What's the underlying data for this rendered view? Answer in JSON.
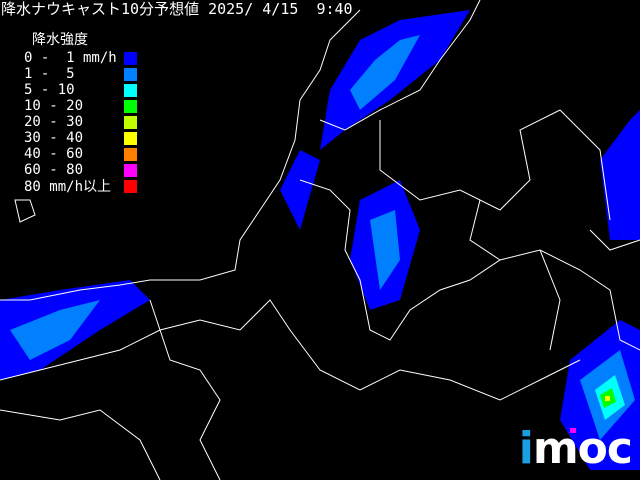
{
  "title": "降水ナウキャスト10分予想値 2025/ 4/15  9:40",
  "legend": {
    "heading": "降水強度",
    "items": [
      {
        "label": "0 -  1 mm/h",
        "color": "#0000ff"
      },
      {
        "label": "1 -  5",
        "color": "#0080ff"
      },
      {
        "label": "5 - 10",
        "color": "#00ffff"
      },
      {
        "label": "10 - 20",
        "color": "#00ff00"
      },
      {
        "label": "20 - 30",
        "color": "#c0ff00"
      },
      {
        "label": "30 - 40",
        "color": "#ffff00"
      },
      {
        "label": "40 - 60",
        "color": "#ff8000"
      },
      {
        "label": "60 - 80",
        "color": "#ff00ff"
      },
      {
        "label": "80 mm/h以上",
        "color": "#ff0000"
      }
    ]
  },
  "logo": {
    "text": "imoc"
  }
}
